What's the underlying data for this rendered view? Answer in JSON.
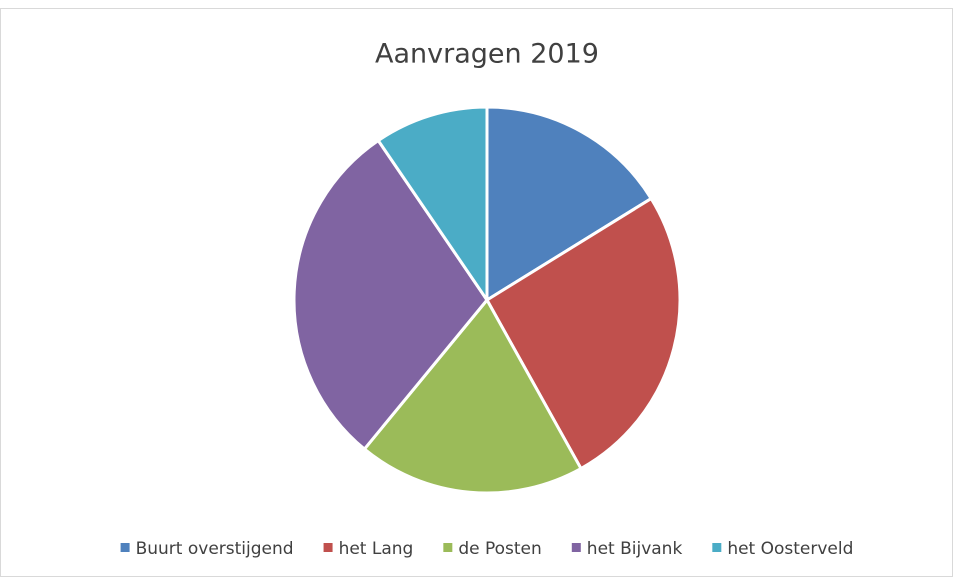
{
  "chart_data": {
    "type": "pie",
    "title": "Aanvragen 2019",
    "categories": [
      "Buurt overstijgend",
      "het Lang",
      "de Posten",
      "het Bijvank",
      "het Oosterveld"
    ],
    "values": [
      17,
      27,
      20,
      31,
      10
    ],
    "colors": [
      "#4f81bd",
      "#c0504d",
      "#9bbb59",
      "#8064a2",
      "#4bacc6"
    ],
    "legend": "bottom"
  }
}
